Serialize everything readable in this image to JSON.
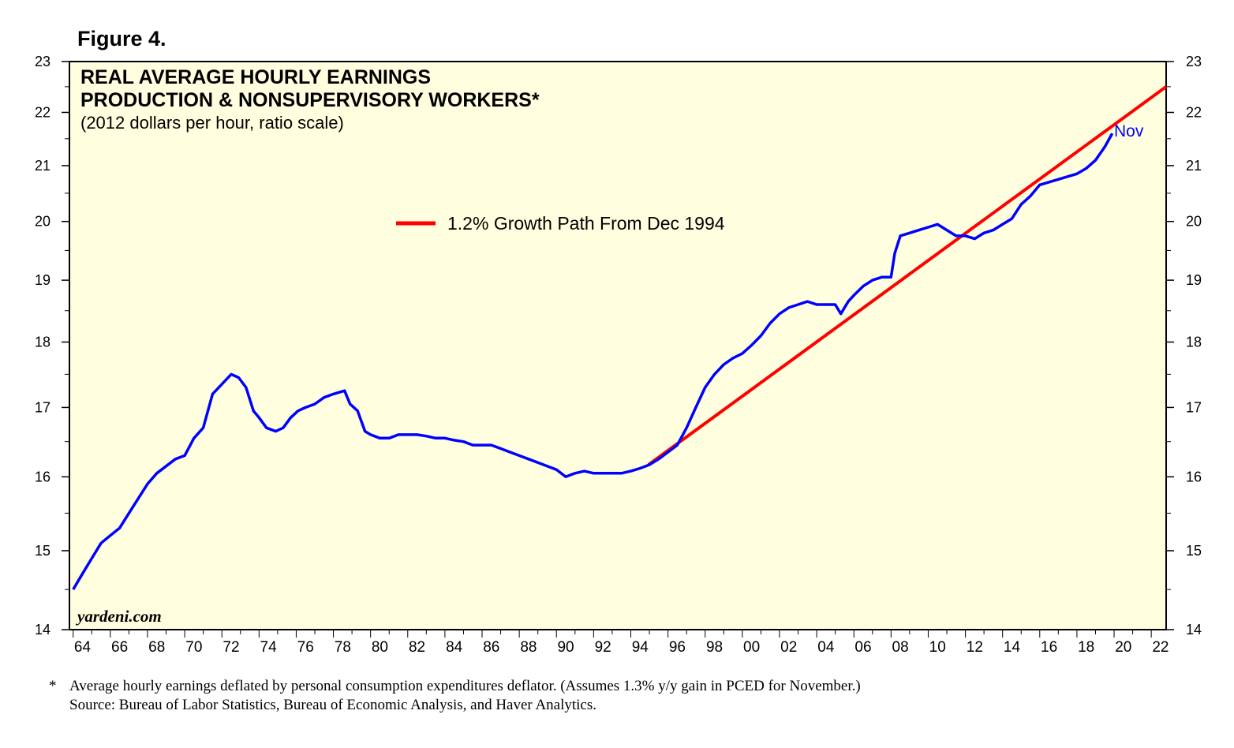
{
  "figure_label": "Figure 4.",
  "chart_data": {
    "type": "line",
    "title": "REAL AVERAGE HOURLY EARNINGS",
    "title2": "PRODUCTION & NONSUPERVISORY WORKERS*",
    "subtitle": "(2012 dollars per hour, ratio scale)",
    "watermark": "yardeni.com",
    "end_label": "Nov",
    "legend": {
      "placement": "center",
      "entries": [
        {
          "name": "1.2% Growth Path From Dec 1994",
          "color": "#ff0000"
        }
      ]
    },
    "x_range": [
      1963.8,
      2022.8
    ],
    "y_range": [
      14,
      23
    ],
    "y_scale": "log",
    "y_ticks": [
      14,
      15,
      16,
      17,
      18,
      19,
      20,
      21,
      22,
      23
    ],
    "x_tick_labels": [
      "64",
      "66",
      "68",
      "70",
      "72",
      "74",
      "76",
      "78",
      "80",
      "82",
      "84",
      "86",
      "88",
      "90",
      "92",
      "94",
      "96",
      "98",
      "00",
      "02",
      "04",
      "06",
      "08",
      "10",
      "12",
      "14",
      "16",
      "18",
      "20",
      "22"
    ],
    "colors": {
      "plot_bg": "#ffffe0",
      "earnings": "#0000ff",
      "growth_path": "#ff0000"
    },
    "series": [
      {
        "name": "Real average hourly earnings",
        "x": [
          1964.0,
          1964.5,
          1965.0,
          1965.5,
          1966.0,
          1966.5,
          1967.0,
          1967.5,
          1968.0,
          1968.5,
          1969.0,
          1969.5,
          1970.0,
          1970.5,
          1971.0,
          1971.5,
          1972.0,
          1972.5,
          1972.9,
          1973.3,
          1973.7,
          1974.0,
          1974.4,
          1974.9,
          1975.3,
          1975.7,
          1976.1,
          1976.5,
          1977.0,
          1977.5,
          1978.0,
          1978.6,
          1978.9,
          1979.3,
          1979.7,
          1980.0,
          1980.5,
          1981.0,
          1981.5,
          1982.0,
          1982.5,
          1983.0,
          1983.5,
          1984.0,
          1984.5,
          1985.0,
          1985.5,
          1986.0,
          1986.5,
          1987.0,
          1987.5,
          1988.0,
          1988.5,
          1989.0,
          1989.5,
          1990.0,
          1990.5,
          1991.0,
          1991.5,
          1992.0,
          1992.5,
          1993.0,
          1993.5,
          1994.0,
          1994.5,
          1995.0,
          1995.5,
          1996.0,
          1996.5,
          1997.0,
          1997.5,
          1998.0,
          1998.5,
          1999.0,
          1999.5,
          2000.0,
          2000.5,
          2001.0,
          2001.5,
          2002.0,
          2002.5,
          2003.0,
          2003.5,
          2004.0,
          2004.5,
          2005.0,
          2005.3,
          2005.7,
          2006.0,
          2006.5,
          2007.0,
          2007.5,
          2008.0,
          2008.2,
          2008.5,
          2009.0,
          2009.5,
          2010.0,
          2010.5,
          2011.0,
          2011.5,
          2012.0,
          2012.5,
          2013.0,
          2013.5,
          2014.0,
          2014.5,
          2015.0,
          2015.5,
          2016.0,
          2016.5,
          2017.0,
          2017.5,
          2018.0,
          2018.5,
          2019.0,
          2019.5,
          2019.9
        ],
        "values": [
          14.5,
          14.7,
          14.9,
          15.1,
          15.2,
          15.3,
          15.5,
          15.7,
          15.9,
          16.05,
          16.15,
          16.25,
          16.3,
          16.55,
          16.7,
          17.2,
          17.35,
          17.5,
          17.45,
          17.3,
          16.95,
          16.85,
          16.7,
          16.65,
          16.7,
          16.85,
          16.95,
          17.0,
          17.05,
          17.15,
          17.2,
          17.25,
          17.05,
          16.95,
          16.65,
          16.6,
          16.55,
          16.55,
          16.6,
          16.6,
          16.6,
          16.58,
          16.55,
          16.55,
          16.52,
          16.5,
          16.45,
          16.45,
          16.45,
          16.4,
          16.35,
          16.3,
          16.25,
          16.2,
          16.15,
          16.1,
          16.0,
          16.05,
          16.08,
          16.05,
          16.05,
          16.05,
          16.05,
          16.08,
          16.12,
          16.17,
          16.25,
          16.35,
          16.45,
          16.7,
          17.0,
          17.3,
          17.5,
          17.65,
          17.75,
          17.82,
          17.95,
          18.1,
          18.3,
          18.45,
          18.55,
          18.6,
          18.65,
          18.6,
          18.6,
          18.6,
          18.45,
          18.65,
          18.75,
          18.9,
          19.0,
          19.05,
          19.05,
          19.45,
          19.75,
          19.8,
          19.85,
          19.9,
          19.95,
          19.85,
          19.75,
          19.75,
          19.7,
          19.8,
          19.85,
          19.95,
          20.05,
          20.3,
          20.45,
          20.65,
          20.7,
          20.75,
          20.8,
          20.85,
          20.95,
          21.1,
          21.35,
          21.6
        ]
      },
      {
        "name": "1.2% Growth Path From Dec 1994",
        "x": [
          1994.95,
          2022.8
        ],
        "values": [
          16.17,
          22.5
        ]
      }
    ]
  },
  "footnote": {
    "marker": "*",
    "line1": "Average hourly earnings deflated by personal consumption expenditures deflator. (Assumes 1.3% y/y gain in PCED for November.)",
    "line2": "Source: Bureau of Labor Statistics, Bureau of Economic Analysis, and Haver Analytics."
  }
}
